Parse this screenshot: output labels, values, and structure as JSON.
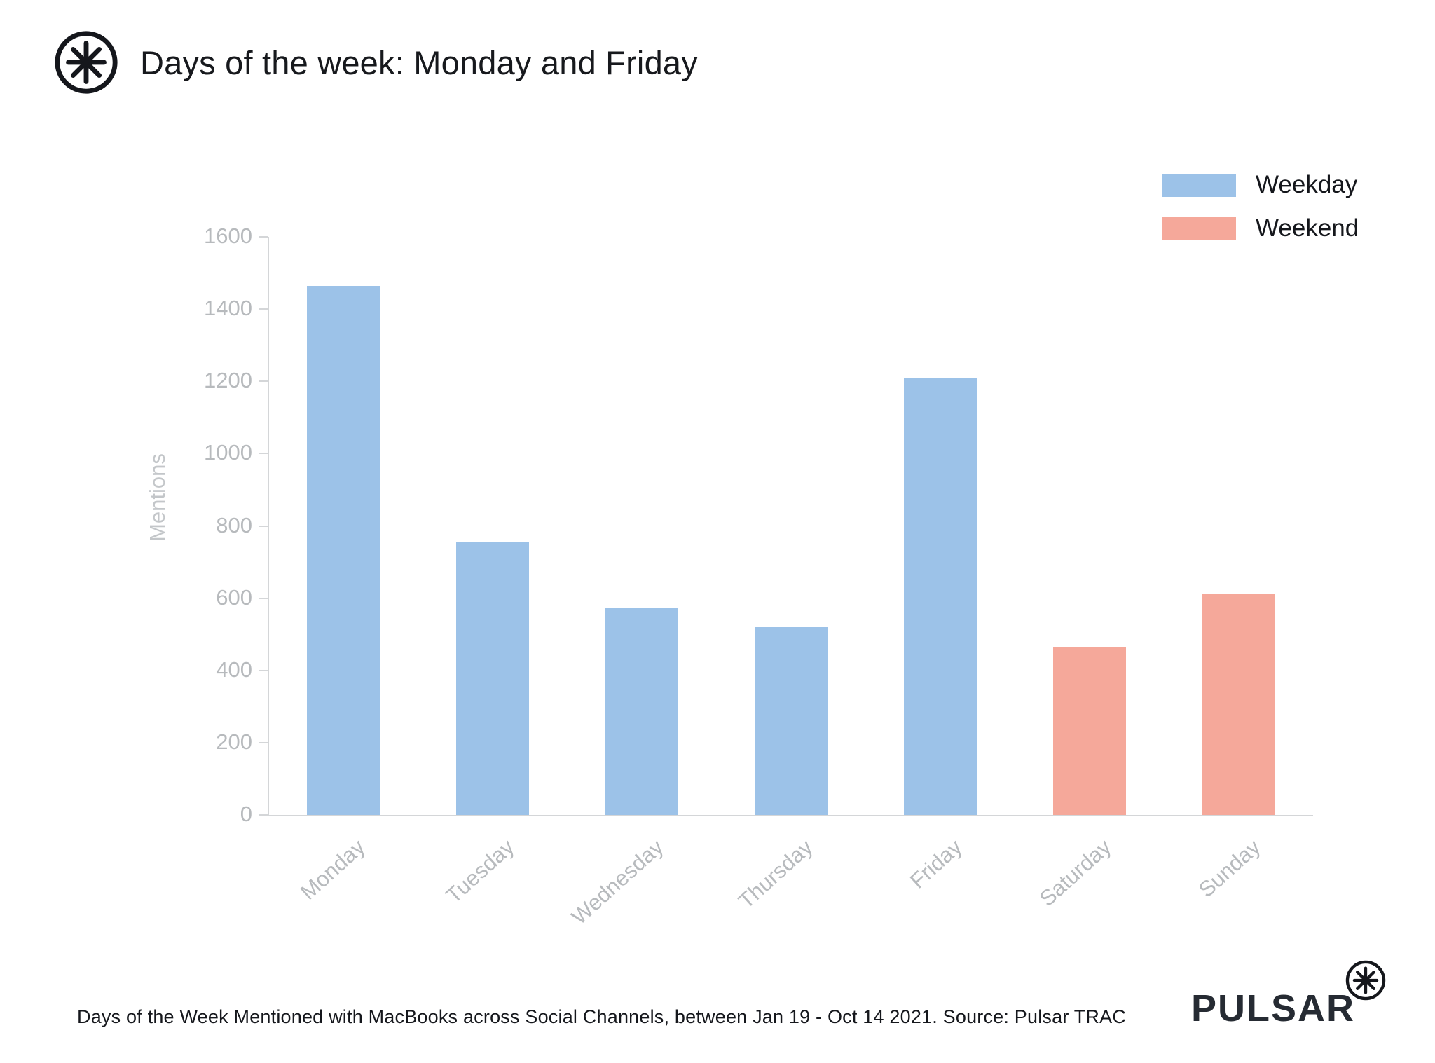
{
  "header": {
    "title": "Days of the week: Monday and Friday"
  },
  "legend": [
    {
      "label": "Weekday",
      "color": "#9cc2e8"
    },
    {
      "label": "Weekend",
      "color": "#f5a89a"
    }
  ],
  "chart_data": {
    "type": "bar",
    "categories": [
      "Monday",
      "Tuesday",
      "Wednesday",
      "Thursday",
      "Friday",
      "Saturday",
      "Sunday"
    ],
    "values": [
      1465,
      755,
      575,
      520,
      1210,
      465,
      610
    ],
    "series_by_point": [
      "Weekday",
      "Weekday",
      "Weekday",
      "Weekday",
      "Weekday",
      "Weekend",
      "Weekend"
    ],
    "colors": {
      "Weekday": "#9cc2e8",
      "Weekend": "#f5a89a"
    },
    "title": "Days of the week: Monday and Friday",
    "xlabel": "",
    "ylabel": "Mentions",
    "ylim": [
      0,
      1600
    ],
    "ytick_step": 200,
    "grid": false,
    "legend_position": "top-right"
  },
  "footer": {
    "caption": "Days of the Week Mentioned with MacBooks across Social Channels, between Jan 19 - Oct 14 2021. Source: Pulsar TRAC",
    "brand": "PULSAR"
  }
}
